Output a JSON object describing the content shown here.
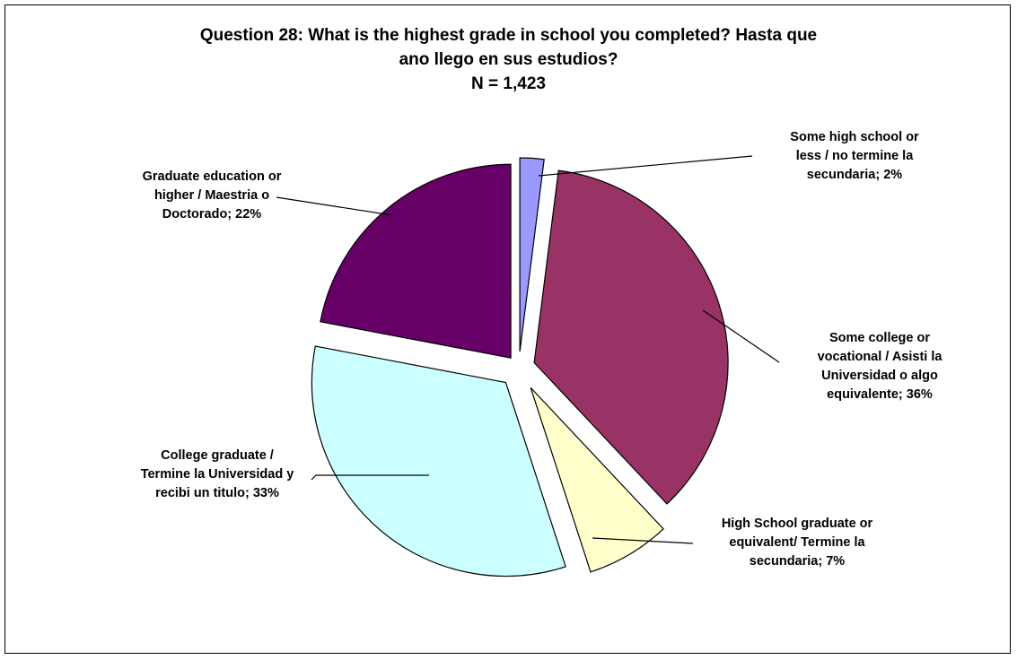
{
  "chart_data": {
    "type": "pie",
    "title_lines": [
      "Question 28: What is the highest grade in school you completed? Hasta que",
      "ano llego en sus estudios?",
      "N = 1,423"
    ],
    "slices": [
      {
        "label_lines": [
          "Some high school or",
          "less / no termine la",
          "secundaria; 2%"
        ],
        "value": 2,
        "color": "#9999FF"
      },
      {
        "label_lines": [
          "Some college or",
          "vocational / Asisti la",
          "Universidad o algo",
          "equivalente; 36%"
        ],
        "value": 36,
        "color": "#993366"
      },
      {
        "label_lines": [
          "High School graduate or",
          "equivalent/ Termine la",
          "secundaria; 7%"
        ],
        "value": 7,
        "color": "#FFFFCC"
      },
      {
        "label_lines": [
          "College graduate /",
          "Termine la Universidad y",
          "recibi un titulo; 33%"
        ],
        "value": 33,
        "color": "#CCFFFF"
      },
      {
        "label_lines": [
          "Graduate education or",
          "higher / Maestria o",
          "Doctorado; 22%"
        ],
        "value": 22,
        "color": "#660066"
      }
    ]
  }
}
